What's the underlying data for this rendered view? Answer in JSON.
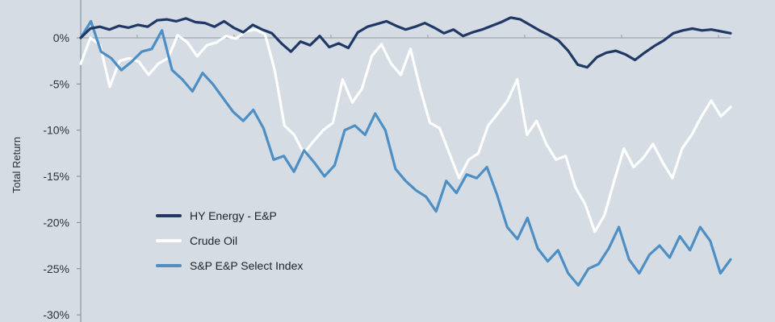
{
  "chart_data": {
    "type": "line",
    "title": "",
    "xlabel": "",
    "ylabel": "Total Return",
    "ylim": [
      -30,
      2
    ],
    "yticks": [
      0,
      -5,
      -10,
      -15,
      -20,
      -25,
      -30
    ],
    "ytick_labels": [
      "0%",
      "-5%",
      "-10%",
      "-15%",
      "-20%",
      "-25%",
      "-30%"
    ],
    "grid": "zero line only",
    "legend_position": "lower-left",
    "series": [
      {
        "name": "HY Energy - E&P",
        "color": "#1f3866",
        "values": [
          0.0,
          1.0,
          1.2,
          0.9,
          1.3,
          1.1,
          1.4,
          1.2,
          1.9,
          2.0,
          1.8,
          2.1,
          1.7,
          1.6,
          1.2,
          1.8,
          1.1,
          0.6,
          1.4,
          0.9,
          0.5,
          -0.6,
          -1.5,
          -0.4,
          -0.8,
          0.2,
          -1.0,
          -0.6,
          -1.1,
          0.6,
          1.2,
          1.5,
          1.8,
          1.3,
          0.9,
          1.2,
          1.6,
          1.1,
          0.5,
          0.9,
          0.2,
          0.6,
          0.9,
          1.3,
          1.7,
          2.2,
          2.0,
          1.4,
          0.8,
          0.3,
          -0.3,
          -1.4,
          -2.9,
          -3.2,
          -2.1,
          -1.6,
          -1.4,
          -1.8,
          -2.4,
          -1.6,
          -0.9,
          -0.3,
          0.5,
          0.8,
          1.0,
          0.8,
          0.9,
          0.7,
          0.5
        ]
      },
      {
        "name": "Crude Oil",
        "color": "#ffffff",
        "values": [
          -2.8,
          0.0,
          -0.8,
          -5.3,
          -2.5,
          -2.2,
          -2.6,
          -4.0,
          -2.8,
          -2.2,
          0.3,
          -0.5,
          -2.0,
          -0.8,
          -0.5,
          0.2,
          -0.1,
          0.7,
          0.9,
          0.4,
          -3.5,
          -9.5,
          -10.5,
          -12.5,
          -11.2,
          -10.0,
          -9.2,
          -4.5,
          -7.0,
          -5.5,
          -2.0,
          -0.7,
          -2.8,
          -4.0,
          -1.2,
          -5.5,
          -9.2,
          -9.8,
          -12.5,
          -15.2,
          -13.2,
          -12.5,
          -9.5,
          -8.2,
          -6.8,
          -4.5,
          -10.5,
          -9.0,
          -11.5,
          -13.2,
          -12.8,
          -16.2,
          -18.0,
          -21.0,
          -19.2,
          -15.5,
          -12.0,
          -14.0,
          -13.0,
          -11.5,
          -13.5,
          -15.2,
          -12.0,
          -10.5,
          -8.5,
          -6.8,
          -8.5,
          -7.5
        ]
      },
      {
        "name": "S&P E&P Select Index",
        "color": "#4d8fc4",
        "values": [
          0.0,
          1.8,
          -1.5,
          -2.2,
          -3.5,
          -2.6,
          -1.5,
          -1.2,
          0.8,
          -3.5,
          -4.5,
          -5.8,
          -3.8,
          -5.0,
          -6.5,
          -8.0,
          -9.0,
          -7.8,
          -9.8,
          -13.2,
          -12.8,
          -14.5,
          -12.2,
          -13.5,
          -15.0,
          -13.8,
          -10.0,
          -9.5,
          -10.5,
          -8.2,
          -10.0,
          -14.2,
          -15.5,
          -16.5,
          -17.2,
          -18.8,
          -15.5,
          -16.8,
          -14.8,
          -15.2,
          -14.0,
          -17.0,
          -20.5,
          -21.8,
          -19.5,
          -22.8,
          -24.2,
          -23.0,
          -25.5,
          -26.8,
          -25.0,
          -24.5,
          -22.8,
          -20.5,
          -24.0,
          -25.5,
          -23.5,
          -22.5,
          -23.8,
          -21.5,
          -23.0,
          -20.5,
          -22.0,
          -25.5,
          -24.0
        ]
      }
    ]
  }
}
